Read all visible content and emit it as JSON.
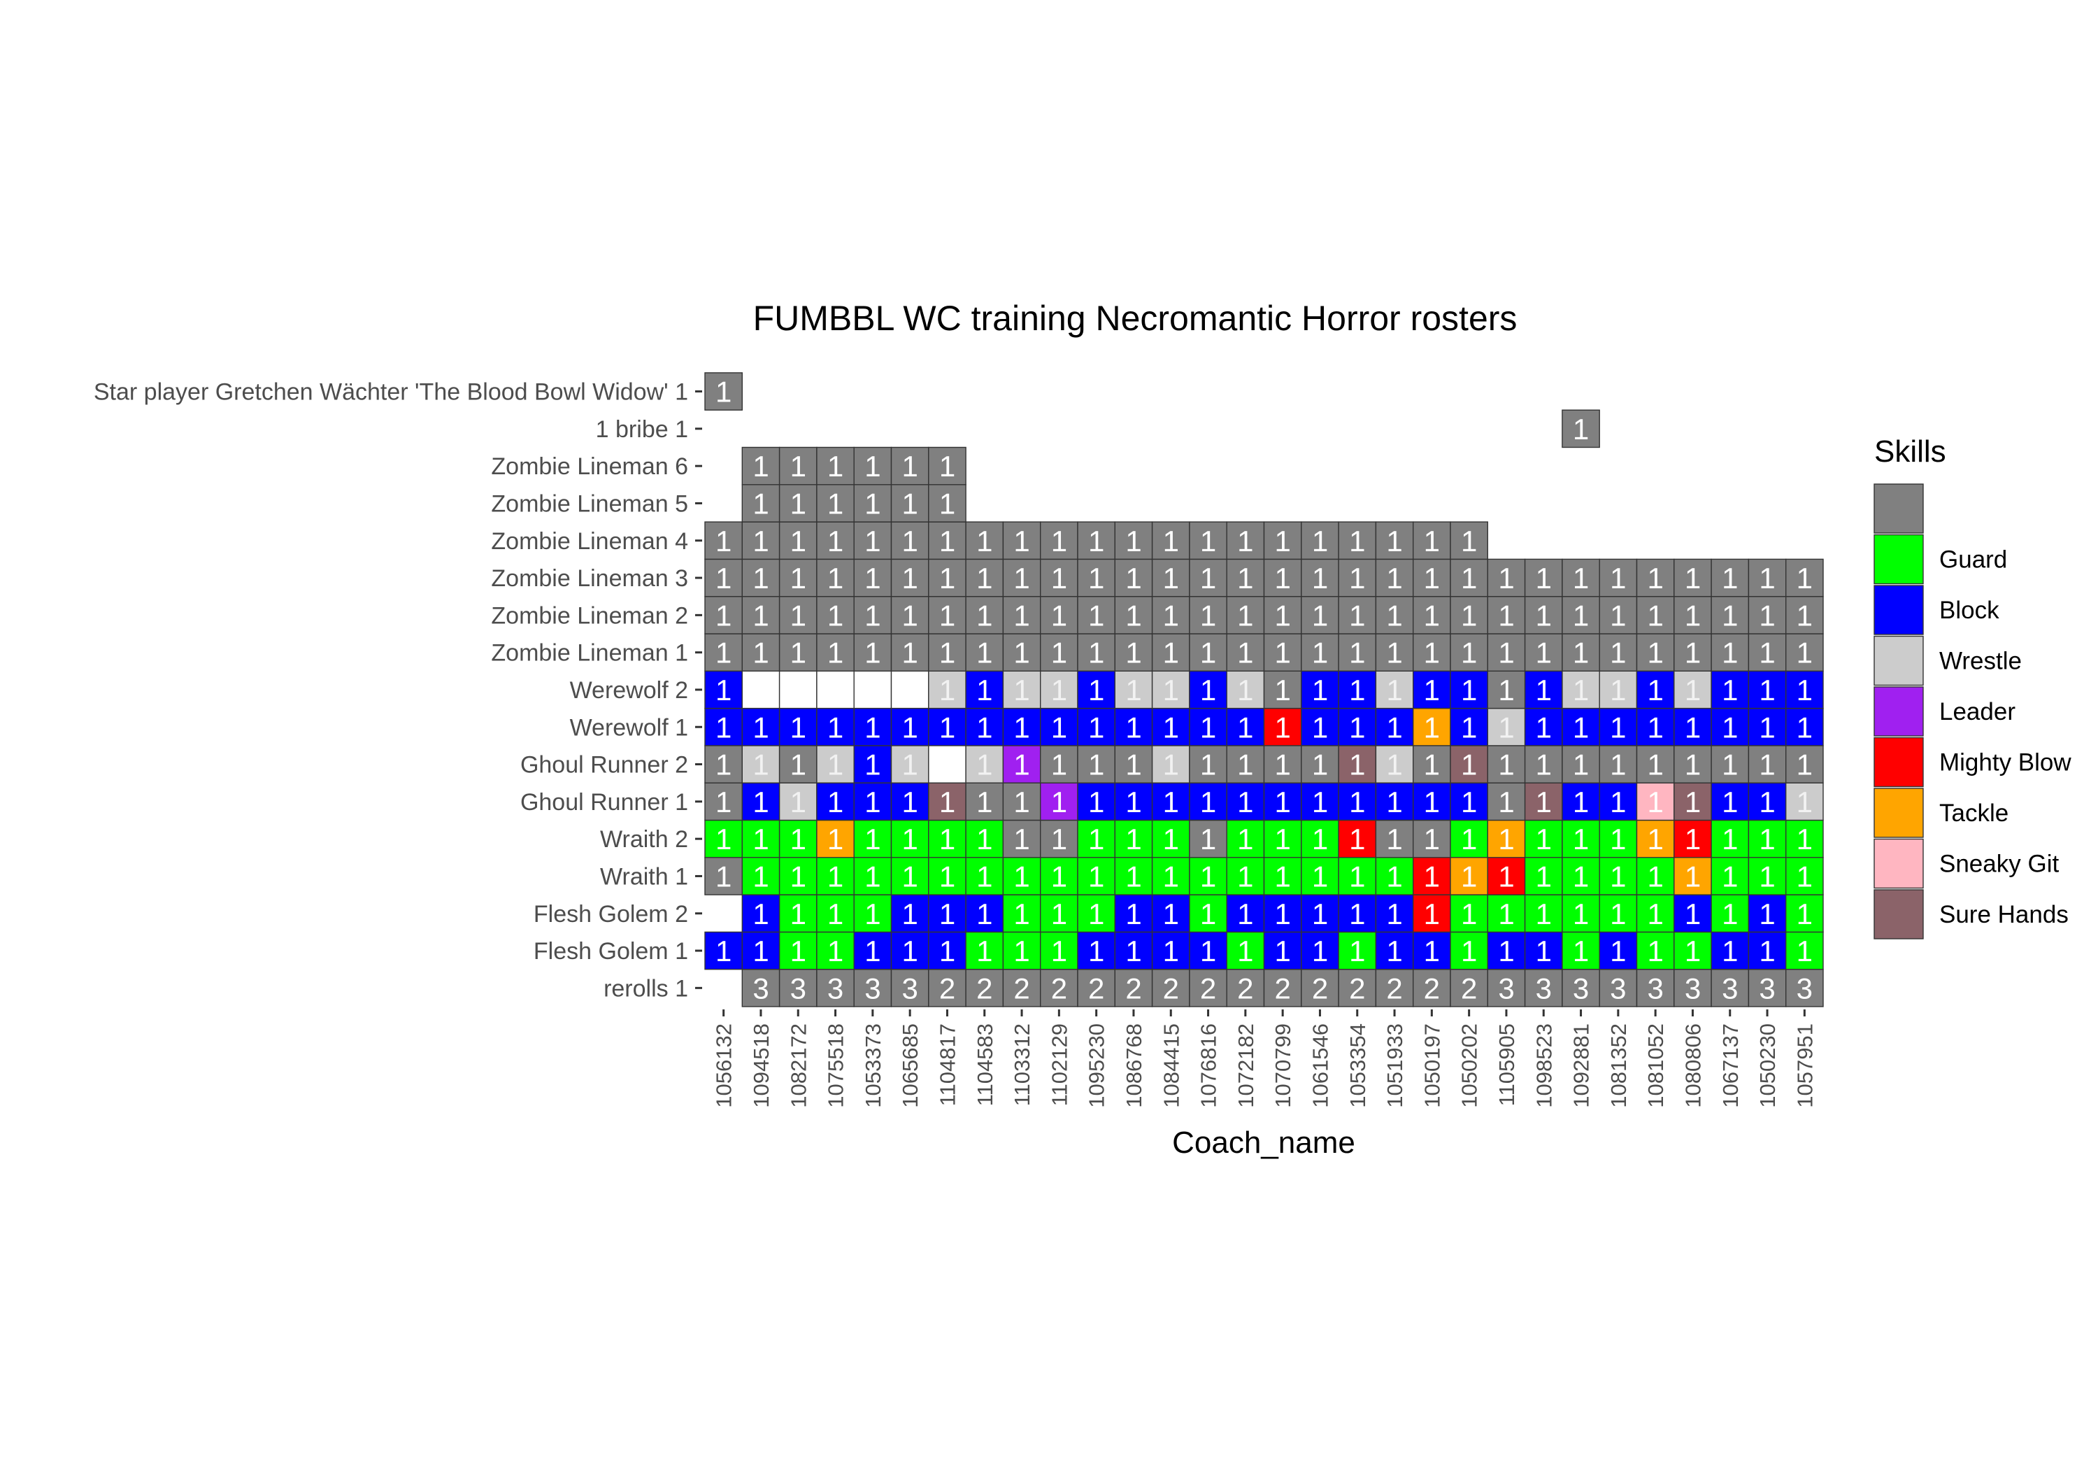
{
  "chart_data": {
    "type": "heatmap",
    "title": "FUMBBL WC training Necromantic Horror rosters",
    "xlabel": "Coach_name",
    "ylabel": "",
    "legend": {
      "title": "Skills",
      "placement": "right",
      "items": [
        {
          "label": "",
          "color": "#808080"
        },
        {
          "label": "Guard",
          "color": "#00ff00"
        },
        {
          "label": "Block",
          "color": "#0000ff"
        },
        {
          "label": "Wrestle",
          "color": "#cccccc"
        },
        {
          "label": "Leader",
          "color": "#a020f0"
        },
        {
          "label": "Mighty Blow",
          "color": "#ff0000"
        },
        {
          "label": "Tackle",
          "color": "#ffa500"
        },
        {
          "label": "Sneaky Git",
          "color": "#ffb6c1"
        },
        {
          "label": "Sure Hands",
          "color": "#8b6369"
        }
      ]
    },
    "color_codes": {
      "G": "#808080",
      "U": "#00ff00",
      "B": "#0000ff",
      "W": "#cccccc",
      "L": "#a020f0",
      "M": "#ff0000",
      "T": "#ffa500",
      "S": "#ffb6c1",
      "H": "#8b6369",
      "X": "#ffffff"
    },
    "x": [
      "1056132",
      "1094518",
      "1082172",
      "1075518",
      "1053373",
      "1065685",
      "1104817",
      "1104583",
      "1103312",
      "1102129",
      "1095230",
      "1086768",
      "1084415",
      "1076816",
      "1072182",
      "1070799",
      "1061546",
      "1053354",
      "1051933",
      "1050197",
      "1050202",
      "1105905",
      "1098523",
      "1092881",
      "1081352",
      "1081052",
      "1080806",
      "1067137",
      "1050230",
      "1057951"
    ],
    "y": [
      "rerolls 1",
      "Flesh Golem 1",
      "Flesh Golem 2",
      "Wraith 1",
      "Wraith 2",
      "Ghoul Runner 1",
      "Ghoul Runner 2",
      "Werewolf 1",
      "Werewolf 2",
      "Zombie Lineman 1",
      "Zombie Lineman 2",
      "Zombie Lineman 3",
      "Zombie Lineman 4",
      "Zombie Lineman 5",
      "Zombie Lineman 6",
      "1 bribe 1",
      "Star player Gretchen Wächter 'The Blood Bowl Widow' 1"
    ],
    "rows": [
      {
        "colors": ".GGGGGGGGGGGGGGGGGGGGGGGGGGGGG",
        "values": [
          null,
          3,
          3,
          3,
          3,
          3,
          2,
          2,
          2,
          2,
          2,
          2,
          2,
          2,
          2,
          2,
          2,
          2,
          2,
          2,
          2,
          3,
          3,
          3,
          3,
          3,
          3,
          3,
          3,
          3
        ]
      },
      {
        "colors": "BBUUBBBUUUBBBBUBBUBBUBBUBUUBBU",
        "values": [
          1,
          1,
          1,
          1,
          1,
          1,
          1,
          1,
          1,
          1,
          1,
          1,
          1,
          1,
          1,
          1,
          1,
          1,
          1,
          1,
          1,
          1,
          1,
          1,
          1,
          1,
          1,
          1,
          1,
          1
        ]
      },
      {
        "colors": ".BUUUBBBUUUBBUBBBBBMUUUUUUBUBU",
        "values": [
          null,
          1,
          1,
          1,
          1,
          1,
          1,
          1,
          1,
          1,
          1,
          1,
          1,
          1,
          1,
          1,
          1,
          1,
          1,
          1,
          1,
          1,
          1,
          1,
          1,
          1,
          1,
          1,
          1,
          1
        ]
      },
      {
        "colors": "GUUUUUUUUUUUUUUUUUUMTMUUUUTUUU",
        "values": [
          1,
          1,
          1,
          1,
          1,
          1,
          1,
          1,
          1,
          1,
          1,
          1,
          1,
          1,
          1,
          1,
          1,
          1,
          1,
          1,
          1,
          1,
          1,
          1,
          1,
          1,
          1,
          1,
          1,
          1
        ]
      },
      {
        "colors": "UUUTUUUUGGUUUGUUUMGGUTUUUTMUUU",
        "values": [
          1,
          1,
          1,
          1,
          1,
          1,
          1,
          1,
          1,
          1,
          1,
          1,
          1,
          1,
          1,
          1,
          1,
          1,
          1,
          1,
          1,
          1,
          1,
          1,
          1,
          1,
          1,
          1,
          1,
          1
        ]
      },
      {
        "colors": "GBWBBBHGGLBBBBBBBBBBBGHBBSHBBW",
        "values": [
          1,
          1,
          1,
          1,
          1,
          1,
          1,
          1,
          1,
          1,
          1,
          1,
          1,
          1,
          1,
          1,
          1,
          1,
          1,
          1,
          1,
          1,
          1,
          1,
          1,
          1,
          1,
          1,
          1,
          1
        ]
      },
      {
        "colors": "GWGWBWXWLGGGWGGGGHWGHGGGGGGGGG",
        "values": [
          1,
          1,
          1,
          1,
          1,
          1,
          null,
          1,
          1,
          1,
          1,
          1,
          1,
          1,
          1,
          1,
          1,
          1,
          1,
          1,
          1,
          1,
          1,
          1,
          1,
          1,
          1,
          1,
          1,
          1
        ]
      },
      {
        "colors": "BBBBBBBBBBBBBBBMBBBTBWBBBBBBBB",
        "values": [
          1,
          1,
          1,
          1,
          1,
          1,
          1,
          1,
          1,
          1,
          1,
          1,
          1,
          1,
          1,
          1,
          1,
          1,
          1,
          1,
          1,
          1,
          1,
          1,
          1,
          1,
          1,
          1,
          1,
          1
        ]
      },
      {
        "colors": "BXXXXXWBWWBWWBWGBBWBBGBWWBWBBB",
        "values": [
          1,
          null,
          null,
          null,
          null,
          null,
          1,
          1,
          1,
          1,
          1,
          1,
          1,
          1,
          1,
          1,
          1,
          1,
          1,
          1,
          1,
          1,
          1,
          1,
          1,
          1,
          1,
          1,
          1,
          1
        ]
      },
      {
        "colors": "GGGGGGGGGGGGGGGGGGGGGGGGGGGGGG",
        "values": [
          1,
          1,
          1,
          1,
          1,
          1,
          1,
          1,
          1,
          1,
          1,
          1,
          1,
          1,
          1,
          1,
          1,
          1,
          1,
          1,
          1,
          1,
          1,
          1,
          1,
          1,
          1,
          1,
          1,
          1
        ]
      },
      {
        "colors": "GGGGGGGGGGGGGGGGGGGGGGGGGGGGGG",
        "values": [
          1,
          1,
          1,
          1,
          1,
          1,
          1,
          1,
          1,
          1,
          1,
          1,
          1,
          1,
          1,
          1,
          1,
          1,
          1,
          1,
          1,
          1,
          1,
          1,
          1,
          1,
          1,
          1,
          1,
          1
        ]
      },
      {
        "colors": "GGGGGGGGGGGGGGGGGGGGGGGGGGGGGG",
        "values": [
          1,
          1,
          1,
          1,
          1,
          1,
          1,
          1,
          1,
          1,
          1,
          1,
          1,
          1,
          1,
          1,
          1,
          1,
          1,
          1,
          1,
          1,
          1,
          1,
          1,
          1,
          1,
          1,
          1,
          1
        ]
      },
      {
        "colors": "GGGGGGGGGGGGGGGGGGGGG.........",
        "values": [
          1,
          1,
          1,
          1,
          1,
          1,
          1,
          1,
          1,
          1,
          1,
          1,
          1,
          1,
          1,
          1,
          1,
          1,
          1,
          1,
          1,
          null,
          null,
          null,
          null,
          null,
          null,
          null,
          null,
          null
        ]
      },
      {
        "colors": ".GGGGGG.......................",
        "values": [
          null,
          1,
          1,
          1,
          1,
          1,
          1,
          null,
          null,
          null,
          null,
          null,
          null,
          null,
          null,
          null,
          null,
          null,
          null,
          null,
          null,
          null,
          null,
          null,
          null,
          null,
          null,
          null,
          null,
          null
        ]
      },
      {
        "colors": ".GGGGGG.......................",
        "values": [
          null,
          1,
          1,
          1,
          1,
          1,
          1,
          null,
          null,
          null,
          null,
          null,
          null,
          null,
          null,
          null,
          null,
          null,
          null,
          null,
          null,
          null,
          null,
          null,
          null,
          null,
          null,
          null,
          null,
          null
        ]
      },
      {
        "colors": ".......................G......",
        "values": [
          null,
          null,
          null,
          null,
          null,
          null,
          null,
          null,
          null,
          null,
          null,
          null,
          null,
          null,
          null,
          null,
          null,
          null,
          null,
          null,
          null,
          null,
          null,
          1,
          null,
          null,
          null,
          null,
          null,
          null
        ]
      },
      {
        "colors": "G.............................",
        "values": [
          1,
          null,
          null,
          null,
          null,
          null,
          null,
          null,
          null,
          null,
          null,
          null,
          null,
          null,
          null,
          null,
          null,
          null,
          null,
          null,
          null,
          null,
          null,
          null,
          null,
          null,
          null,
          null,
          null,
          null
        ]
      }
    ],
    "grid": false
  }
}
